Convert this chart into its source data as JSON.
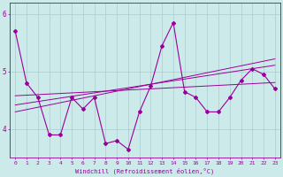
{
  "x": [
    0,
    1,
    2,
    3,
    4,
    5,
    6,
    7,
    8,
    9,
    10,
    11,
    12,
    13,
    14,
    15,
    16,
    17,
    18,
    19,
    20,
    21,
    22,
    23
  ],
  "y_main": [
    5.7,
    4.8,
    4.55,
    3.9,
    3.9,
    4.55,
    4.35,
    4.55,
    3.75,
    3.8,
    3.65,
    4.3,
    4.75,
    5.45,
    5.85,
    4.65,
    4.55,
    4.3,
    4.3,
    4.55,
    4.85,
    5.05,
    4.95,
    4.7
  ],
  "y_trend1": [
    4.58,
    4.59,
    4.6,
    4.61,
    4.62,
    4.63,
    4.64,
    4.65,
    4.66,
    4.67,
    4.68,
    4.69,
    4.7,
    4.71,
    4.72,
    4.73,
    4.74,
    4.75,
    4.76,
    4.77,
    4.78,
    4.79,
    4.8,
    4.81
  ],
  "y_trend2": [
    4.42,
    4.45,
    4.48,
    4.51,
    4.54,
    4.57,
    4.6,
    4.63,
    4.66,
    4.69,
    4.72,
    4.75,
    4.78,
    4.81,
    4.84,
    4.87,
    4.9,
    4.93,
    4.96,
    4.99,
    5.02,
    5.05,
    5.08,
    5.11
  ],
  "y_trend3": [
    4.3,
    4.34,
    4.38,
    4.42,
    4.46,
    4.5,
    4.54,
    4.58,
    4.62,
    4.66,
    4.7,
    4.74,
    4.78,
    4.82,
    4.86,
    4.9,
    4.94,
    4.98,
    5.02,
    5.06,
    5.1,
    5.14,
    5.18,
    5.22
  ],
  "line_color": "#990099",
  "bg_color": "#cceaea",
  "grid_color": "#aacccc",
  "xlabel": "Windchill (Refroidissement éolien,°C)",
  "xlim": [
    -0.5,
    23.5
  ],
  "ylim": [
    3.5,
    6.2
  ],
  "yticks": [
    4,
    5,
    6
  ],
  "xticks": [
    0,
    1,
    2,
    3,
    4,
    5,
    6,
    7,
    8,
    9,
    10,
    11,
    12,
    13,
    14,
    15,
    16,
    17,
    18,
    19,
    20,
    21,
    22,
    23
  ]
}
